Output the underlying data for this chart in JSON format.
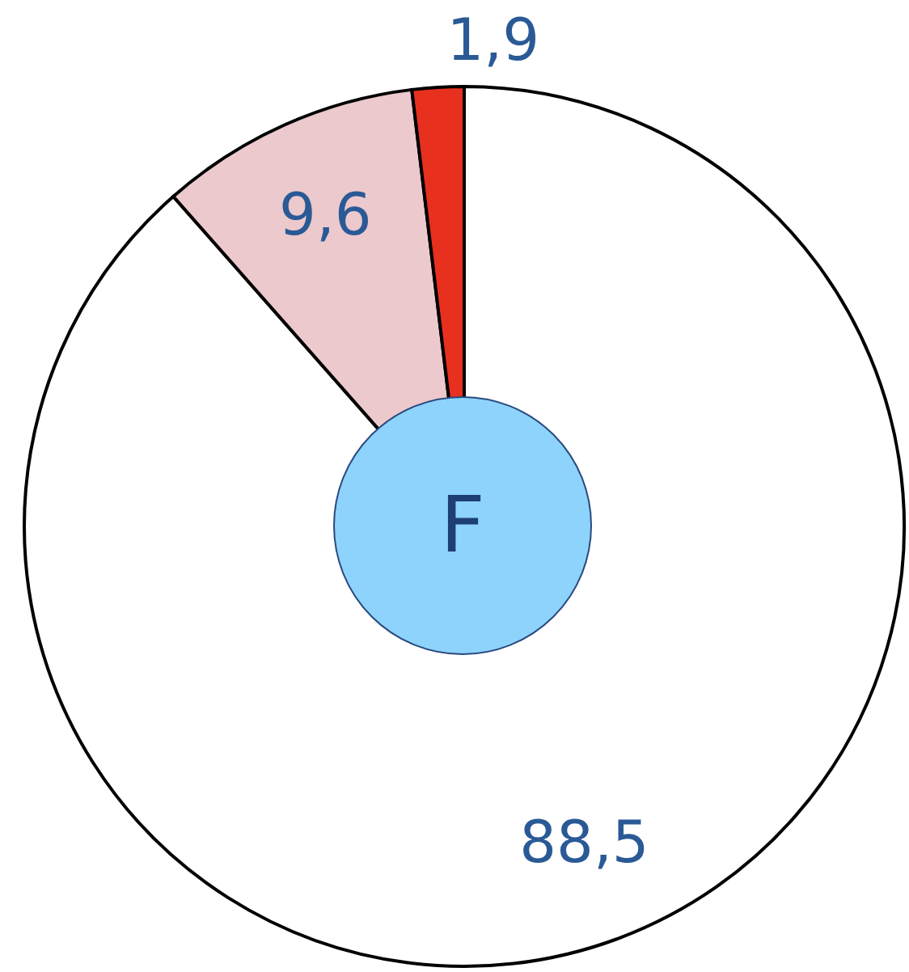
{
  "chart_data": {
    "type": "donut",
    "categories": [
      null,
      null,
      null
    ],
    "values": [
      88.5,
      9.6,
      1.9
    ],
    "colors": [
      "#ffffff",
      "#ecc9cc",
      "#e8301f"
    ],
    "value_labels": [
      "88,5",
      "9,6",
      "1,9"
    ],
    "annotations": [
      "F"
    ]
  }
}
